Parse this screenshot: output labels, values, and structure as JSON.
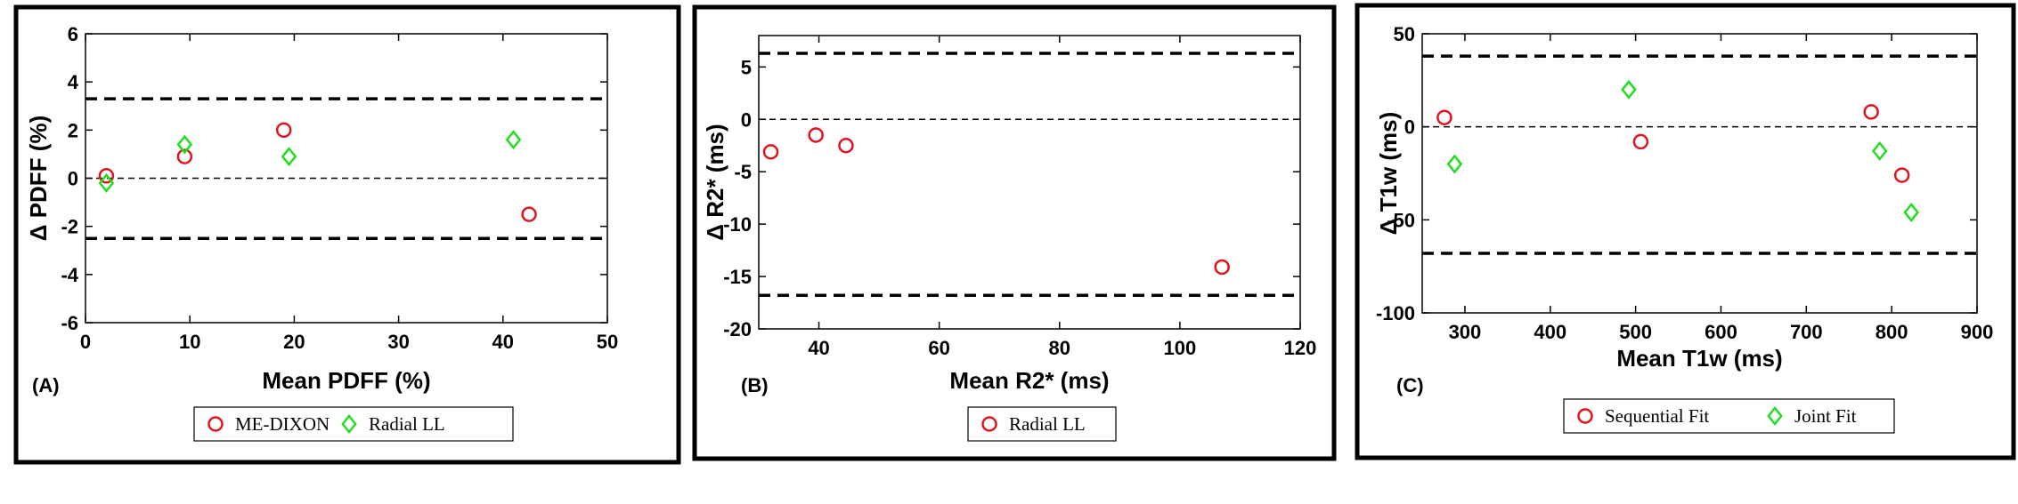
{
  "chart_data": [
    {
      "type": "scatter",
      "panel_label": "(A)",
      "xlabel": "Mean PDFF (%)",
      "ylabel": "Δ PDFF (%)",
      "xlim": [
        0,
        50
      ],
      "ylim": [
        -6,
        6
      ],
      "xticks": [
        "0",
        "10",
        "20",
        "30",
        "40",
        "50"
      ],
      "yticks": [
        "-6",
        "-4",
        "-2",
        "0",
        "2",
        "4",
        "6"
      ],
      "reference_lines": [
        3.3,
        0,
        -2.5
      ],
      "series": [
        {
          "name": "ME-DIXON",
          "marker": "circle",
          "color": "#e0141e",
          "x": [
            2,
            9.5,
            19,
            42.5
          ],
          "y": [
            0.1,
            0.9,
            2.0,
            -1.5
          ]
        },
        {
          "name": "Radial LL",
          "marker": "diamond",
          "color": "#22dd22",
          "x": [
            2,
            9.5,
            19.5,
            41
          ],
          "y": [
            -0.2,
            1.4,
            0.9,
            1.6
          ]
        }
      ]
    },
    {
      "type": "scatter",
      "panel_label": "(B)",
      "xlabel": "Mean R2* (ms)",
      "ylabel": "Δ R2* (ms)",
      "xlim": [
        30,
        120
      ],
      "ylim": [
        -20,
        8
      ],
      "xticks": [
        "40",
        "60",
        "80",
        "100",
        "120"
      ],
      "yticks": [
        "-20",
        "-15",
        "-10",
        "-5",
        "0",
        "5"
      ],
      "reference_lines": [
        6.3,
        0,
        -16.8
      ],
      "series": [
        {
          "name": "Radial LL",
          "marker": "circle",
          "color": "#e0141e",
          "x": [
            32,
            39.5,
            44.5,
            107
          ],
          "y": [
            -3.1,
            -1.5,
            -2.5,
            -14.1
          ]
        }
      ]
    },
    {
      "type": "scatter",
      "panel_label": "(C)",
      "xlabel": "Mean T1w (ms)",
      "ylabel": "Δ T1w (ms)",
      "xlim": [
        250,
        900
      ],
      "ylim": [
        -100,
        50
      ],
      "xticks": [
        "300",
        "400",
        "500",
        "600",
        "700",
        "800",
        "900"
      ],
      "yticks": [
        "-100",
        "-50",
        "0",
        "50"
      ],
      "reference_lines": [
        38,
        0,
        -68
      ],
      "series": [
        {
          "name": "Sequential Fit",
          "marker": "circle",
          "color": "#e0141e",
          "x": [
            276,
            506,
            776,
            812
          ],
          "y": [
            5,
            -8,
            8,
            -26
          ]
        },
        {
          "name": "Joint Fit",
          "marker": "diamond",
          "color": "#22dd22",
          "x": [
            288,
            492,
            786,
            823
          ],
          "y": [
            -20,
            20,
            -13,
            -46
          ]
        }
      ]
    }
  ]
}
